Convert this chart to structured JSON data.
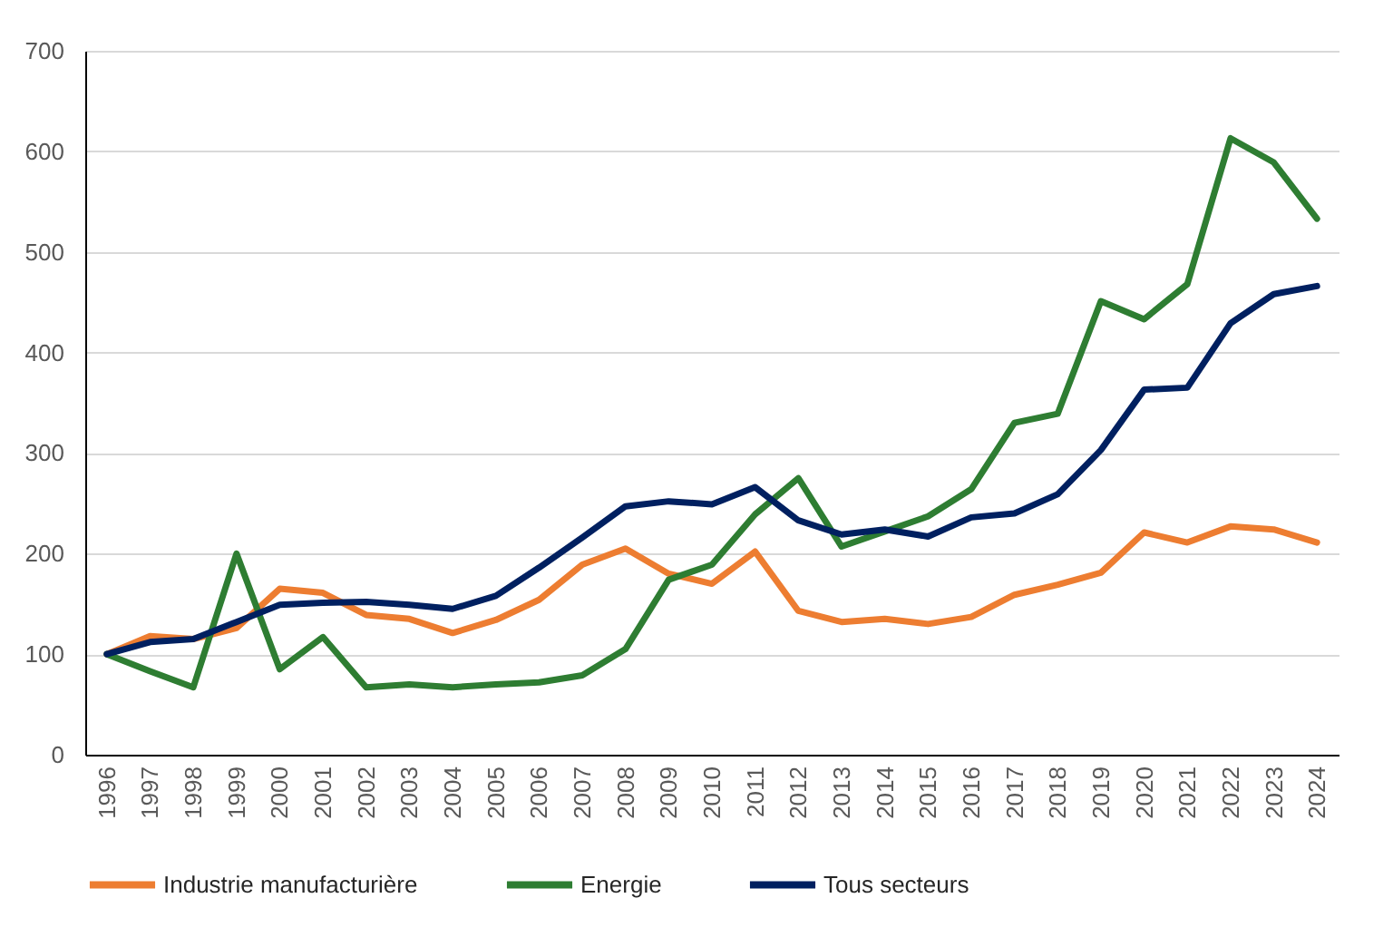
{
  "chart_data": {
    "type": "line",
    "categories": [
      "1996",
      "1997",
      "1998",
      "1999",
      "2000",
      "2001",
      "2002",
      "2003",
      "2004",
      "2005",
      "2006",
      "2007",
      "2008",
      "2009",
      "2010",
      "2011",
      "2012",
      "2013",
      "2014",
      "2015",
      "2016",
      "2017",
      "2018",
      "2019",
      "2020",
      "2021",
      "2022",
      "2023",
      "2024"
    ],
    "series": [
      {
        "name": "Industrie manufacturière",
        "color": "#ed7d31",
        "values": [
          100,
          118,
          115,
          126,
          165,
          161,
          139,
          135,
          121,
          134,
          154,
          189,
          205,
          180,
          170,
          202,
          143,
          132,
          135,
          130,
          137,
          159,
          169,
          181,
          221,
          211,
          227,
          224,
          211
        ]
      },
      {
        "name": "Energie",
        "color": "#2e7d32",
        "values": [
          100,
          83,
          67,
          200,
          85,
          117,
          67,
          70,
          67,
          70,
          72,
          79,
          105,
          174,
          189,
          239,
          275,
          207,
          222,
          237,
          264,
          330,
          339,
          451,
          433,
          468,
          613,
          589,
          533
        ]
      },
      {
        "name": "Tous secteurs",
        "color": "#002060",
        "values": [
          100,
          112,
          115,
          132,
          149,
          151,
          152,
          149,
          145,
          158,
          186,
          216,
          247,
          252,
          249,
          266,
          233,
          219,
          224,
          217,
          236,
          240,
          259,
          303,
          363,
          365,
          429,
          458,
          466
        ]
      }
    ],
    "ylim": [
      0,
      700
    ],
    "yticks": [
      0,
      100,
      200,
      300,
      400,
      500,
      600,
      700
    ],
    "grid": "y",
    "legend": "bottom",
    "marker": "none",
    "line_style": "solid"
  }
}
